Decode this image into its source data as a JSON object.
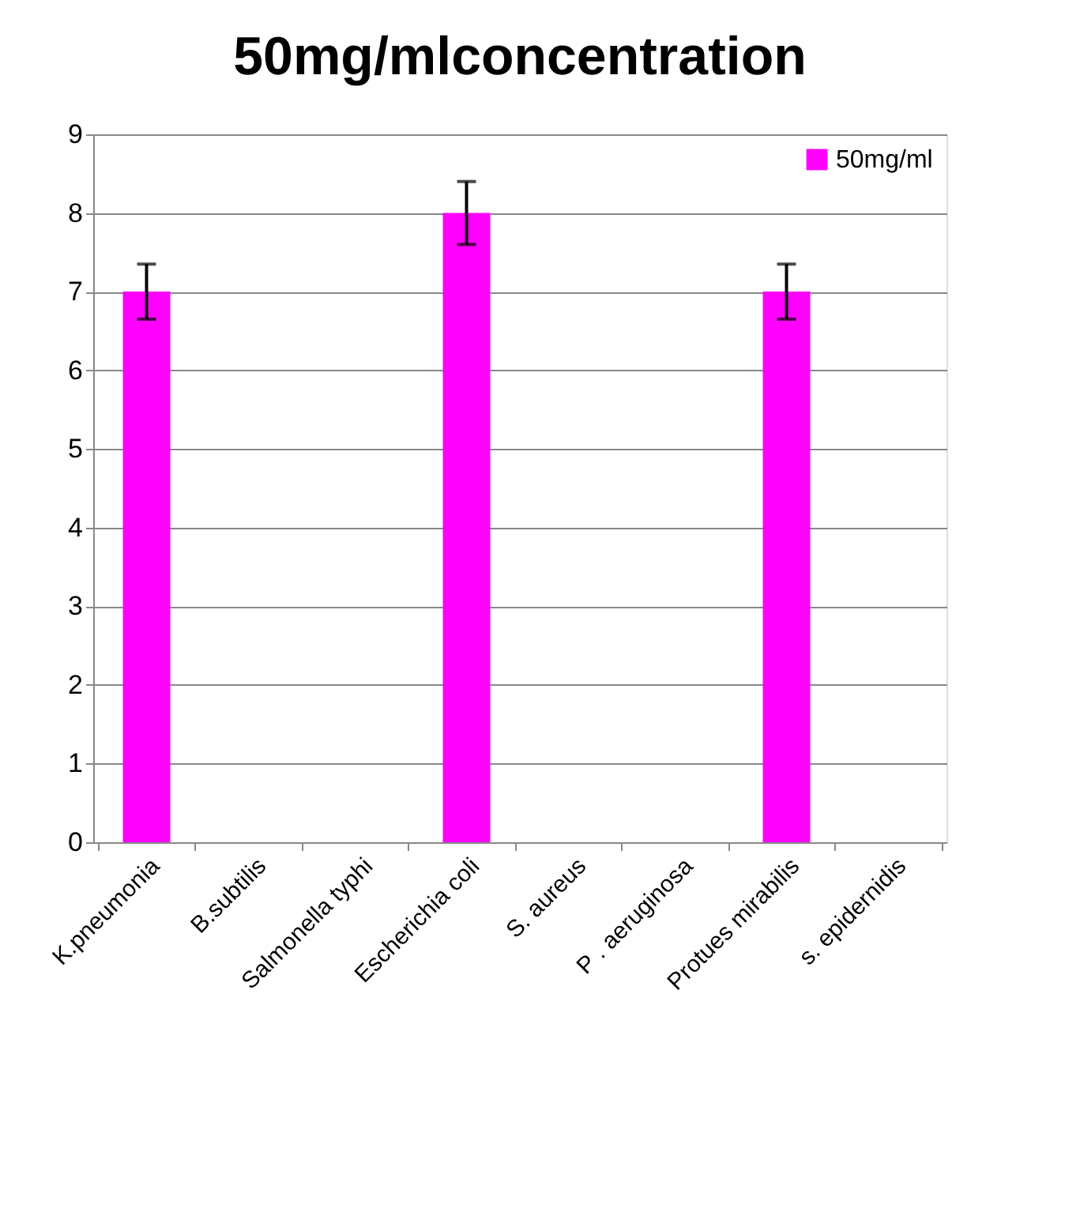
{
  "chart_data": {
    "type": "bar",
    "title": "50mg/mlconcentration",
    "categories": [
      "K.pneumonia",
      "B.subtilis",
      "Salmonella typhi",
      "Escherichia coli",
      "S. aureus",
      "P . aeruginosa",
      "Protues mirabilis",
      "s. epidernidis"
    ],
    "series": [
      {
        "name": "50mg/ml",
        "color": "#ff00ff",
        "values": [
          7,
          null,
          null,
          8,
          null,
          null,
          7,
          null
        ],
        "errors": [
          0.35,
          null,
          null,
          0.4,
          null,
          null,
          0.35,
          null
        ]
      }
    ],
    "ylim": [
      0,
      9
    ],
    "yticks": [
      0,
      1,
      2,
      3,
      4,
      5,
      6,
      7,
      8,
      9
    ],
    "grid": "y",
    "legend": "top right"
  }
}
